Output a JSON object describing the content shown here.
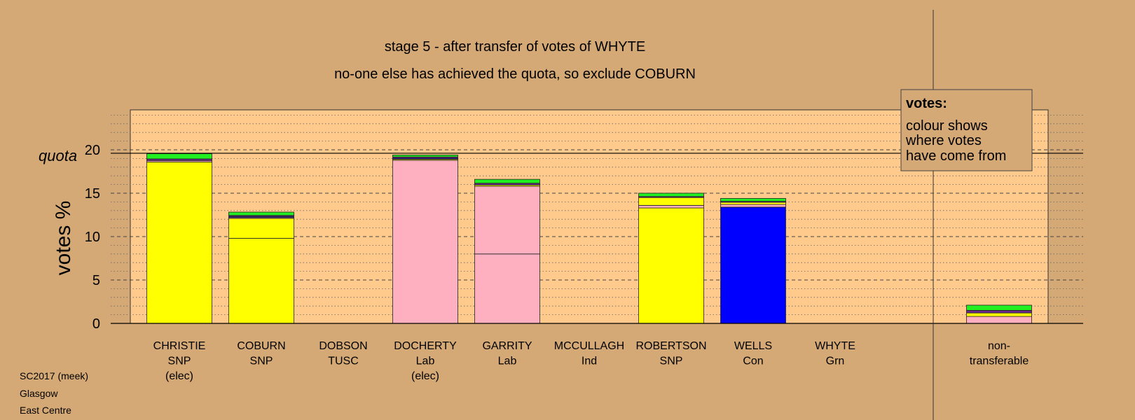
{
  "chart_data": {
    "type": "bar",
    "stacked": true,
    "title": "stage 5 - after transfer of votes of WHYTE",
    "subtitle": "no-one else has achieved the quota, so exclude COBURN",
    "ylabel": "votes %",
    "quota_label": "quota",
    "quota": 19.6,
    "ylim": [
      0,
      24.6
    ],
    "yticks": [
      0,
      5,
      10,
      15,
      20
    ],
    "grid": true,
    "legend": {
      "position": "top-right",
      "heading": "votes:",
      "lines": [
        "colour shows",
        "where votes",
        "have come from"
      ]
    },
    "categories": [
      {
        "name": "CHRISTIE",
        "party": "SNP",
        "note": "(elec)"
      },
      {
        "name": "COBURN",
        "party": "SNP",
        "note": ""
      },
      {
        "name": "DOBSON",
        "party": "TUSC",
        "note": ""
      },
      {
        "name": "DOCHERTY",
        "party": "Lab",
        "note": "(elec)"
      },
      {
        "name": "GARRITY",
        "party": "Lab",
        "note": ""
      },
      {
        "name": "MCCULLAGH",
        "party": "Ind",
        "note": ""
      },
      {
        "name": "ROBERTSON",
        "party": "SNP",
        "note": ""
      },
      {
        "name": "WELLS",
        "party": "Con",
        "note": ""
      },
      {
        "name": "WHYTE",
        "party": "Grn",
        "note": ""
      },
      {
        "name": "non-",
        "party": "transferable",
        "note": ""
      }
    ],
    "stacks": [
      [
        {
          "v": 18.6,
          "c": "#ffff00"
        },
        {
          "v": 0.15,
          "c": "#ffb0c0"
        },
        {
          "v": 0.2,
          "c": "#6a2a8a"
        },
        {
          "v": 0.6,
          "c": "#22ee22"
        }
      ],
      [
        {
          "v": 9.8,
          "c": "#ffff00"
        },
        {
          "v": 2.3,
          "c": "#ffff00"
        },
        {
          "v": 0.1,
          "c": "#ffb0c0"
        },
        {
          "v": 0.12,
          "c": "#2222cc"
        },
        {
          "v": 0.12,
          "c": "#6a2a8a"
        },
        {
          "v": 0.38,
          "c": "#22ee22"
        }
      ],
      [],
      [
        {
          "v": 18.8,
          "c": "#ffb0c0"
        },
        {
          "v": 0.12,
          "c": "#ffff00"
        },
        {
          "v": 0.12,
          "c": "#2222cc"
        },
        {
          "v": 0.14,
          "c": "#6a2a8a"
        },
        {
          "v": 0.22,
          "c": "#22ee22"
        }
      ],
      [
        {
          "v": 8.0,
          "c": "#ffb0c0"
        },
        {
          "v": 7.8,
          "c": "#ffb0c0"
        },
        {
          "v": 0.15,
          "c": "#ffff00"
        },
        {
          "v": 0.2,
          "c": "#6a2a8a"
        },
        {
          "v": 0.45,
          "c": "#22ee22"
        }
      ],
      [],
      [
        {
          "v": 13.3,
          "c": "#ffff00"
        },
        {
          "v": 0.3,
          "c": "#ffb0c0"
        },
        {
          "v": 0.9,
          "c": "#ffff00"
        },
        {
          "v": 0.12,
          "c": "#6a2a8a"
        },
        {
          "v": 0.38,
          "c": "#22ee22"
        }
      ],
      [
        {
          "v": 13.4,
          "c": "#0000ff"
        },
        {
          "v": 0.3,
          "c": "#ffb0c0"
        },
        {
          "v": 0.25,
          "c": "#ffff00"
        },
        {
          "v": 0.12,
          "c": "#6a2a8a"
        },
        {
          "v": 0.33,
          "c": "#22ee22"
        }
      ],
      [],
      [
        {
          "v": 0.8,
          "c": "#ffb0c0"
        },
        {
          "v": 0.4,
          "c": "#ffff00"
        },
        {
          "v": 0.3,
          "c": "#6a2a8a"
        },
        {
          "v": 0.6,
          "c": "#22ee22"
        }
      ]
    ]
  },
  "footer": [
    "SC2017 (meek)",
    "Glasgow",
    "East Centre"
  ]
}
